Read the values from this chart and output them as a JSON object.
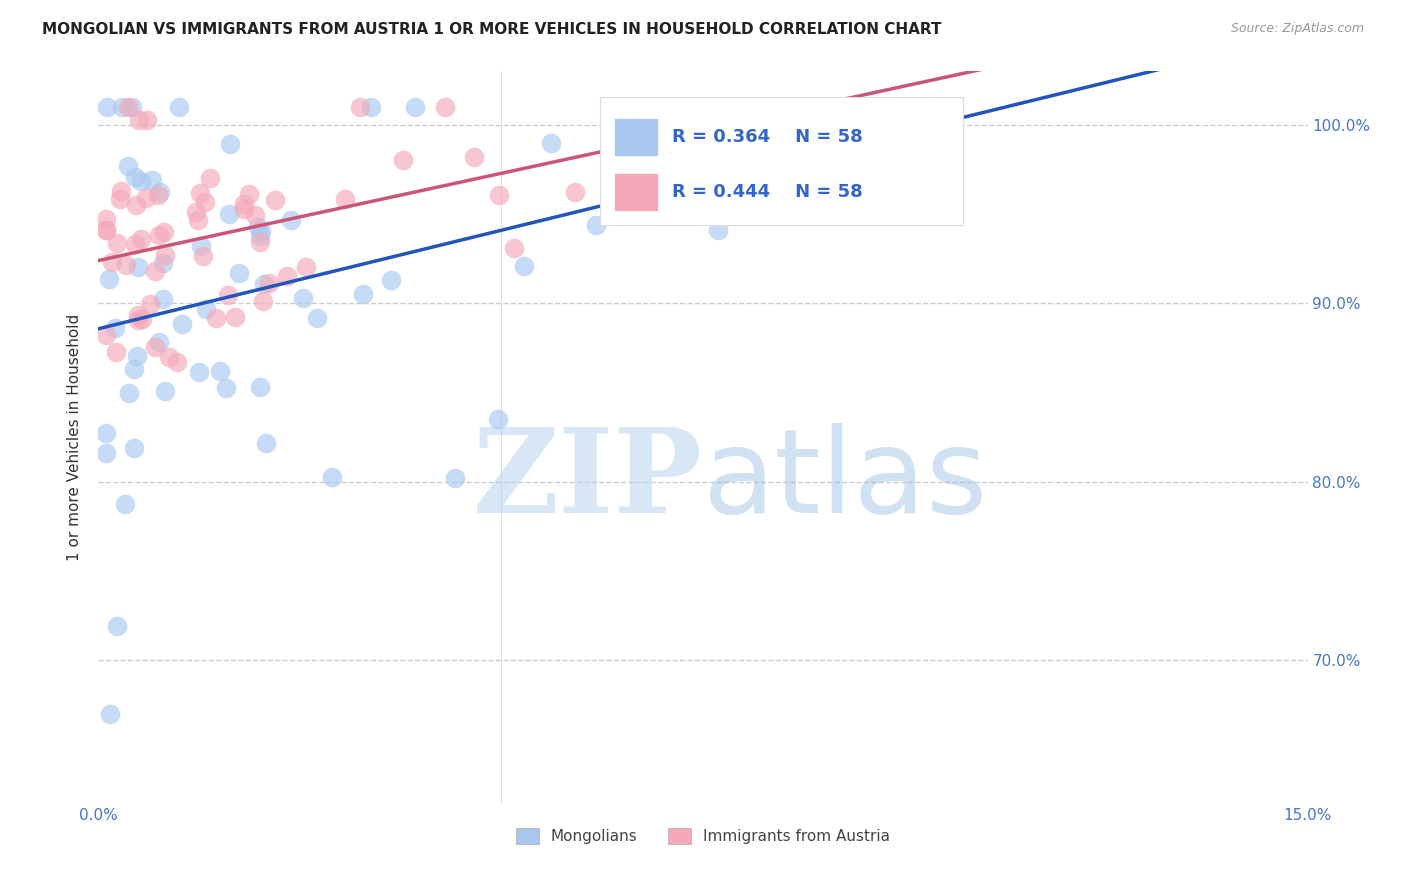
{
  "title": "MONGOLIAN VS IMMIGRANTS FROM AUSTRIA 1 OR MORE VEHICLES IN HOUSEHOLD CORRELATION CHART",
  "source": "Source: ZipAtlas.com",
  "ylabel": "1 or more Vehicles in Household",
  "yticks": [
    0.7,
    0.8,
    0.9,
    1.0
  ],
  "ytick_labels": [
    "70.0%",
    "80.0%",
    "90.0%",
    "100.0%"
  ],
  "xlim": [
    0.0,
    0.15
  ],
  "ylim": [
    0.62,
    1.03
  ],
  "r_mongolian": 0.364,
  "n_mongolian": 58,
  "r_austria": 0.444,
  "n_austria": 58,
  "color_mongolian": "#a8c8f0",
  "color_austria": "#f4a8b8",
  "line_color_mongolian": "#2255bb",
  "line_color_austria": "#cc5577",
  "grid_color": "#cccccc",
  "tick_color": "#4477cc",
  "legend_text_color": "#3366cc",
  "title_color": "#222222",
  "source_color": "#999999"
}
